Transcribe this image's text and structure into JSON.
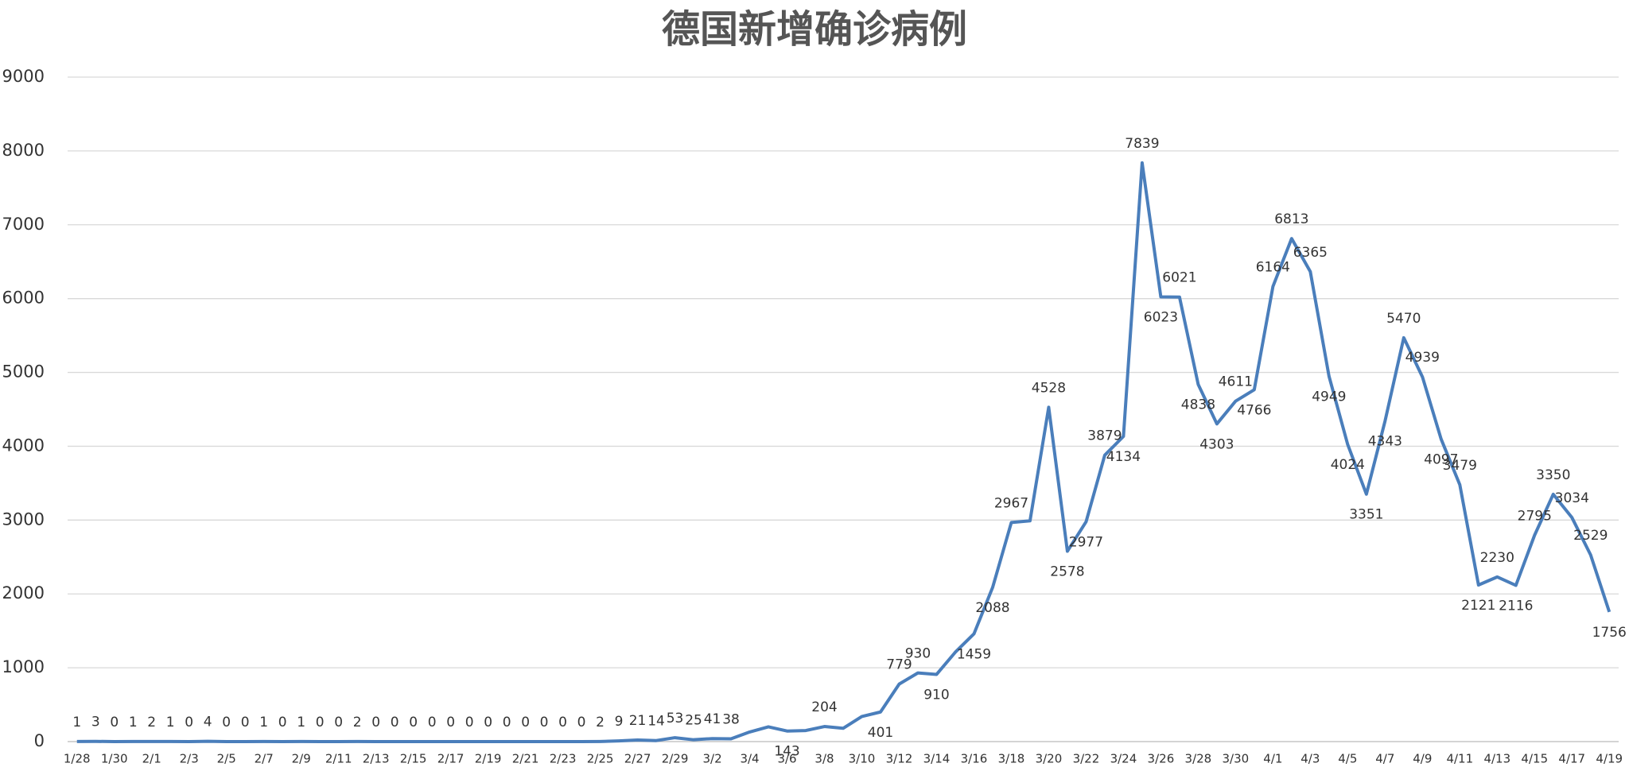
{
  "chart_data": {
    "type": "line",
    "title": "德国新增确诊病例",
    "categories": [
      "1/28",
      null,
      "1/30",
      null,
      "2/1",
      null,
      "2/3",
      null,
      "2/5",
      null,
      "2/7",
      null,
      "2/9",
      null,
      "2/11",
      null,
      "2/13",
      null,
      "2/15",
      null,
      "2/17",
      null,
      "2/19",
      null,
      "2/21",
      null,
      "2/23",
      null,
      "2/25",
      null,
      "2/27",
      null,
      "2/29",
      null,
      "3/2",
      null,
      "3/4",
      null,
      "3/6",
      null,
      "3/8",
      null,
      "3/10",
      null,
      "3/12",
      null,
      "3/14",
      null,
      "3/16",
      null,
      "3/18",
      null,
      "3/20",
      null,
      "3/22",
      null,
      "3/24",
      null,
      "3/26",
      null,
      "3/28",
      null,
      "3/30",
      null,
      "4/1",
      null,
      "4/3",
      null,
      "4/5",
      null,
      "4/7",
      null,
      "4/9",
      null,
      "4/11",
      null,
      "4/13",
      null,
      "4/15",
      null,
      "4/17",
      null,
      "4/19"
    ],
    "series": [
      {
        "name": "新增确诊",
        "color": "#4a7ebb",
        "values": [
          1,
          3,
          0,
          1,
          2,
          1,
          0,
          4,
          0,
          0,
          1,
          0,
          1,
          0,
          0,
          2,
          0,
          0,
          0,
          0,
          0,
          0,
          0,
          0,
          0,
          0,
          0,
          0,
          2,
          9,
          21,
          14,
          53,
          25,
          41,
          38,
          130,
          200,
          143,
          150,
          204,
          180,
          340,
          401,
          779,
          930,
          910,
          1210,
          1459,
          2088,
          2967,
          2990,
          4528,
          2578,
          2977,
          3879,
          4134,
          7839,
          6023,
          6021,
          4838,
          4303,
          4611,
          4766,
          6164,
          6813,
          6365,
          4949,
          4024,
          3351,
          4343,
          5470,
          4939,
          4097,
          3479,
          2121,
          2230,
          2116,
          2795,
          3350,
          3034,
          2529,
          1756
        ],
        "value_labels": [
          "1",
          "3",
          "0",
          "1",
          "2",
          "1",
          "0",
          "4",
          "0",
          "0",
          "1",
          "0",
          "1",
          "0",
          "0",
          "2",
          "0",
          "0",
          "0",
          "0",
          "0",
          "0",
          "0",
          "0",
          "0",
          "0",
          "0",
          "0",
          "2",
          "9",
          "21",
          "14",
          "53",
          "25",
          "41",
          "38",
          null,
          null,
          "143",
          null,
          "204",
          null,
          null,
          "401",
          "779",
          "930",
          "910",
          null,
          "1459",
          "2088",
          "2967",
          null,
          "4528",
          "2578",
          "2977",
          "3879",
          "4134",
          "7839",
          "6023",
          "6021",
          "4838",
          "4303",
          "4611",
          "4766",
          "6164",
          "6813",
          "6365",
          "4949",
          "4024",
          "3351",
          "4343",
          "5470",
          "4939",
          "4097",
          "3479",
          "2121",
          "2230",
          "2116",
          "2795",
          "3350",
          "3034",
          "2529",
          "1756"
        ]
      }
    ],
    "ylim": [
      0,
      9000
    ],
    "yticks": [
      0,
      1000,
      2000,
      3000,
      4000,
      5000,
      6000,
      7000,
      8000,
      9000
    ],
    "grid": true
  }
}
